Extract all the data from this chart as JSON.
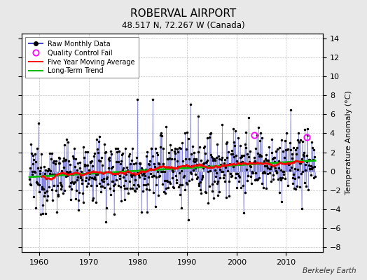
{
  "title": "ROBERVAL AIRPORT",
  "subtitle": "48.517 N, 72.267 W (Canada)",
  "ylabel": "Temperature Anomaly (°C)",
  "watermark": "Berkeley Earth",
  "xlim": [
    1956.5,
    2017.5
  ],
  "ylim": [
    -8.5,
    14.5
  ],
  "yticks": [
    -8,
    -6,
    -4,
    -2,
    0,
    2,
    4,
    6,
    8,
    10,
    12,
    14
  ],
  "xticks": [
    1960,
    1970,
    1980,
    1990,
    2000,
    2010
  ],
  "bg_color": "#e8e8e8",
  "plot_bg_color": "#ffffff",
  "raw_color": "#4444cc",
  "ma_color": "#ff0000",
  "trend_color": "#00bb00",
  "qc_color": "#ff00ff",
  "dot_color": "#000000",
  "seed": 12345,
  "n_years": 58,
  "start_year": 1958.0,
  "qc_year1": 2003.5,
  "qc_val1": 3.8,
  "qc_year2": 2014.2,
  "qc_val2": 3.6
}
